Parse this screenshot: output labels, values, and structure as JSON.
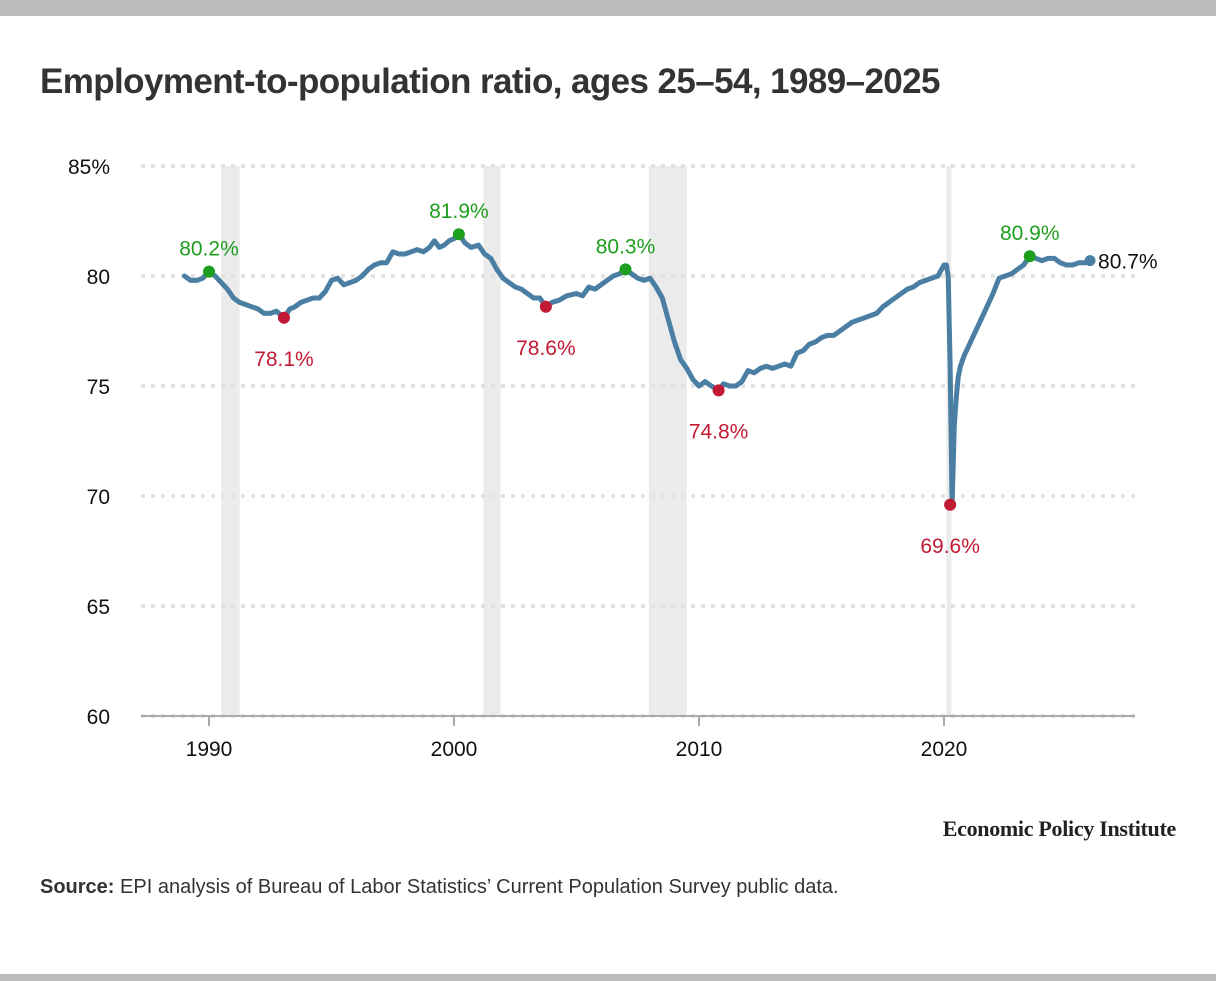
{
  "header": {
    "title": "Employment-to-population ratio, ages 25–54, 1989–2025"
  },
  "footer": {
    "brand": "Economic Policy Institute",
    "source_label": "Source:",
    "source_text": " EPI analysis of Bureau of Labor Statistics’ Current Population Survey public data."
  },
  "colors": {
    "line": "#4a7fa3",
    "peak": "#1e9e1e",
    "trough": "#c21a32",
    "recession": "#ebebeb",
    "grid": "#e2e2e2",
    "axis": "#aaaaaa"
  },
  "chart_data": {
    "type": "line",
    "title": "Employment-to-population ratio, ages 25–54, 1989–2025",
    "xlabel": "",
    "ylabel": "",
    "xlim": [
      1987.2,
      2027.8
    ],
    "ylim": [
      60,
      85
    ],
    "grid": true,
    "y_ticks": [
      {
        "value": 85,
        "label": "85%"
      },
      {
        "value": 80,
        "label": "80"
      },
      {
        "value": 75,
        "label": "75"
      },
      {
        "value": 70,
        "label": "70"
      },
      {
        "value": 65,
        "label": "65"
      },
      {
        "value": 60,
        "label": "60"
      }
    ],
    "x_ticks": [
      {
        "value": 1990,
        "label": "1990"
      },
      {
        "value": 2000,
        "label": "2000"
      },
      {
        "value": 2010,
        "label": "2010"
      },
      {
        "value": 2020,
        "label": "2020"
      }
    ],
    "recessions": [
      {
        "start": 1990.5,
        "end": 1991.25
      },
      {
        "start": 2001.2,
        "end": 2001.9
      },
      {
        "start": 2007.95,
        "end": 2009.5
      },
      {
        "start": 2020.1,
        "end": 2020.3
      }
    ],
    "series": [
      {
        "name": "Employment-to-population ratio, ages 25–54",
        "x": [
          1989.0,
          1989.25,
          1989.5,
          1989.75,
          1990.0,
          1990.25,
          1990.5,
          1990.75,
          1991.0,
          1991.25,
          1991.5,
          1991.75,
          1992.0,
          1992.25,
          1992.5,
          1992.75,
          1993.06,
          1993.3,
          1993.5,
          1993.75,
          1994.0,
          1994.25,
          1994.5,
          1994.75,
          1995.0,
          1995.25,
          1995.5,
          1995.75,
          1996.0,
          1996.25,
          1996.5,
          1996.75,
          1997.0,
          1997.25,
          1997.5,
          1997.75,
          1998.0,
          1998.25,
          1998.5,
          1998.75,
          1999.0,
          1999.2,
          1999.4,
          1999.6,
          1999.8,
          2000.0,
          2000.2,
          2000.45,
          2000.7,
          2001.0,
          2001.25,
          2001.5,
          2001.75,
          2002.0,
          2002.25,
          2002.5,
          2002.75,
          2003.0,
          2003.25,
          2003.5,
          2003.75,
          2004.0,
          2004.3,
          2004.6,
          2005.0,
          2005.25,
          2005.5,
          2005.75,
          2006.0,
          2006.25,
          2006.5,
          2006.75,
          2007.0,
          2007.25,
          2007.5,
          2007.75,
          2008.0,
          2008.25,
          2008.5,
          2008.75,
          2009.0,
          2009.25,
          2009.5,
          2009.75,
          2010.0,
          2010.25,
          2010.5,
          2010.8,
          2011.0,
          2011.25,
          2011.5,
          2011.75,
          2012.0,
          2012.25,
          2012.5,
          2012.75,
          2013.0,
          2013.25,
          2013.5,
          2013.75,
          2014.0,
          2014.25,
          2014.5,
          2014.75,
          2015.0,
          2015.25,
          2015.5,
          2015.75,
          2016.0,
          2016.25,
          2016.5,
          2016.75,
          2017.0,
          2017.25,
          2017.5,
          2017.75,
          2018.0,
          2018.25,
          2018.5,
          2018.75,
          2019.0,
          2019.25,
          2019.5,
          2019.75,
          2020.0,
          2020.1,
          2020.17,
          2020.25,
          2020.33,
          2020.42,
          2020.5,
          2020.58,
          2020.67,
          2020.83,
          2021.0,
          2021.25,
          2021.5,
          2021.75,
          2022.0,
          2022.25,
          2022.5,
          2022.75,
          2023.0,
          2023.25,
          2023.5,
          2023.75,
          2024.0,
          2024.25,
          2024.5,
          2024.75,
          2025.0,
          2025.25,
          2025.5,
          2025.75,
          2025.96
        ],
        "y": [
          80.0,
          79.8,
          79.8,
          79.9,
          80.2,
          80.0,
          79.7,
          79.4,
          79.0,
          78.8,
          78.7,
          78.6,
          78.5,
          78.3,
          78.3,
          78.4,
          78.1,
          78.5,
          78.6,
          78.8,
          78.9,
          79.0,
          79.0,
          79.3,
          79.8,
          79.9,
          79.6,
          79.7,
          79.8,
          80.0,
          80.3,
          80.5,
          80.6,
          80.6,
          81.1,
          81.0,
          81.0,
          81.1,
          81.2,
          81.1,
          81.3,
          81.6,
          81.3,
          81.4,
          81.6,
          81.7,
          81.9,
          81.5,
          81.3,
          81.4,
          81.0,
          80.8,
          80.3,
          79.9,
          79.7,
          79.5,
          79.4,
          79.2,
          79.0,
          79.0,
          78.6,
          78.8,
          78.9,
          79.1,
          79.2,
          79.1,
          79.5,
          79.4,
          79.6,
          79.8,
          80.0,
          80.1,
          80.3,
          80.1,
          79.9,
          79.8,
          79.9,
          79.5,
          79.0,
          78.0,
          77.0,
          76.2,
          75.8,
          75.3,
          75.0,
          75.2,
          75.0,
          74.8,
          75.1,
          75.0,
          75.0,
          75.2,
          75.7,
          75.6,
          75.8,
          75.9,
          75.8,
          75.9,
          76.0,
          75.9,
          76.5,
          76.6,
          76.9,
          77.0,
          77.2,
          77.3,
          77.3,
          77.5,
          77.7,
          77.9,
          78.0,
          78.1,
          78.2,
          78.3,
          78.6,
          78.8,
          79.0,
          79.2,
          79.4,
          79.5,
          79.7,
          79.8,
          79.9,
          80.0,
          80.5,
          80.5,
          80.0,
          76.0,
          69.6,
          73.2,
          74.5,
          75.4,
          75.9,
          76.4,
          76.8,
          77.4,
          78.0,
          78.6,
          79.2,
          79.9,
          80.0,
          80.1,
          80.3,
          80.5,
          80.9,
          80.8,
          80.7,
          80.8,
          80.8,
          80.6,
          80.5,
          80.5,
          80.6,
          80.6,
          80.7
        ]
      }
    ],
    "annotations": [
      {
        "x": 1990.0,
        "y": 80.2,
        "label": "80.2%",
        "kind": "peak",
        "placement": "above"
      },
      {
        "x": 1993.06,
        "y": 78.1,
        "label": "78.1%",
        "kind": "trough",
        "placement": "below"
      },
      {
        "x": 2000.2,
        "y": 81.9,
        "label": "81.9%",
        "kind": "peak",
        "placement": "above"
      },
      {
        "x": 2003.75,
        "y": 78.6,
        "label": "78.6%",
        "kind": "trough",
        "placement": "below"
      },
      {
        "x": 2007.0,
        "y": 80.3,
        "label": "80.3%",
        "kind": "peak",
        "placement": "above"
      },
      {
        "x": 2010.8,
        "y": 74.8,
        "label": "74.8%",
        "kind": "trough",
        "placement": "below"
      },
      {
        "x": 2020.25,
        "y": 69.6,
        "label": "69.6%",
        "kind": "trough",
        "placement": "below"
      },
      {
        "x": 2023.5,
        "y": 80.9,
        "label": "80.9%",
        "kind": "peak",
        "placement": "above"
      },
      {
        "x": 2025.96,
        "y": 80.7,
        "label": "80.7%",
        "kind": "latest",
        "placement": "right"
      }
    ]
  }
}
